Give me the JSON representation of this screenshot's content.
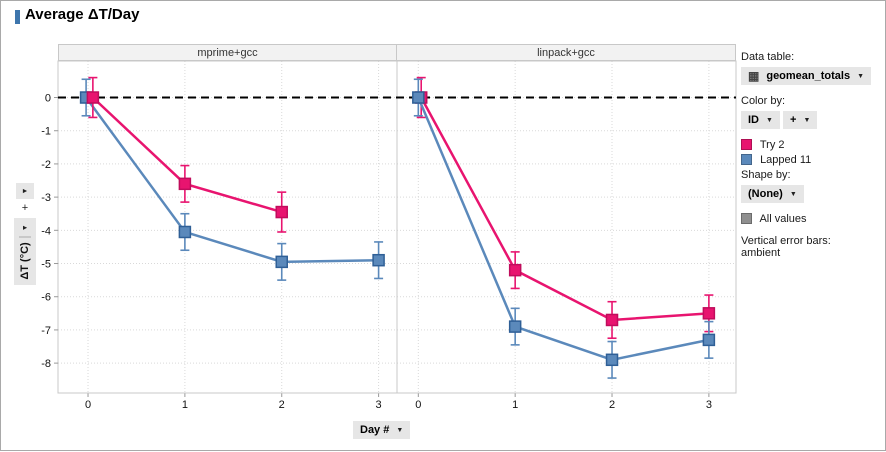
{
  "title": {
    "text": "Average ΔT/Day"
  },
  "icons": {
    "caret_down": "▼",
    "caret_right": "►",
    "table_grid": "▦",
    "plus": "+"
  },
  "colors": {
    "accent_bar": "#3e76ad",
    "try2_pink": "#e8146f",
    "lapped11_blue": "#5b89bb",
    "all_values_gray": "#8f8f8f"
  },
  "sidebar": {
    "data_table_label": "Data table:",
    "data_table_value": "geomean_totals",
    "color_by_label": "Color by:",
    "color_by_value": "ID",
    "color_by_plus": "+",
    "legend": [
      {
        "label": "Try 2",
        "color": "#e8146f"
      },
      {
        "label": "Lapped 11",
        "color": "#5b89bb"
      }
    ],
    "shape_by_label": "Shape by:",
    "shape_by_value": "(None)",
    "all_values_label": "All values",
    "all_values_color": "#8f8f8f",
    "error_bars_label": "Vertical error bars:",
    "error_bars_value": "ambient"
  },
  "chart_data": {
    "type": "line",
    "title": "Average ΔT/Day",
    "xlabel": "Day #",
    "ylabel": "ΔT (°C)",
    "x": [
      0,
      1,
      2,
      3
    ],
    "yticks": [
      0,
      -1,
      -2,
      -3,
      -4,
      -5,
      -6,
      -7,
      -8
    ],
    "ylim": [
      -8.9,
      1.1
    ],
    "grid": "dotted",
    "legend_position": "right",
    "reference_line": {
      "y": 0,
      "style": "dashed",
      "color": "#000000"
    },
    "error_bars": "vertical, ambient, approx ±0.55 °C at every point",
    "panels": [
      {
        "title": "mprime+gcc",
        "xlim": [
          -0.31,
          3.19
        ],
        "series": [
          {
            "name": "Lapped 11",
            "color": "#5b89bb",
            "edge": "#2f5f96",
            "x": [
              -0.02,
              1,
              2,
              3
            ],
            "y": [
              0,
              -4.05,
              -4.95,
              -4.9
            ],
            "err": [
              0.55,
              0.55,
              0.55,
              0.55
            ]
          },
          {
            "name": "Try 2",
            "color": "#e8146f",
            "edge": "#c00d5c",
            "x": [
              0.05,
              1,
              2
            ],
            "y": [
              0,
              -2.6,
              -3.45
            ],
            "err": [
              0.6,
              0.55,
              0.6
            ]
          }
        ]
      },
      {
        "title": "linpack+gcc",
        "xlim": [
          -0.22,
          3.28
        ],
        "series": [
          {
            "name": "Try 2",
            "color": "#e8146f",
            "edge": "#c00d5c",
            "x": [
              0.03,
              1,
              2,
              3
            ],
            "y": [
              0,
              -5.2,
              -6.7,
              -6.5
            ],
            "err": [
              0.6,
              0.55,
              0.55,
              0.55
            ]
          },
          {
            "name": "Lapped 11",
            "color": "#5b89bb",
            "edge": "#2f5f96",
            "x": [
              0,
              1,
              2,
              3
            ],
            "y": [
              0,
              -6.9,
              -7.9,
              -7.3
            ],
            "err": [
              0.55,
              0.55,
              0.55,
              0.55
            ]
          }
        ]
      }
    ]
  }
}
